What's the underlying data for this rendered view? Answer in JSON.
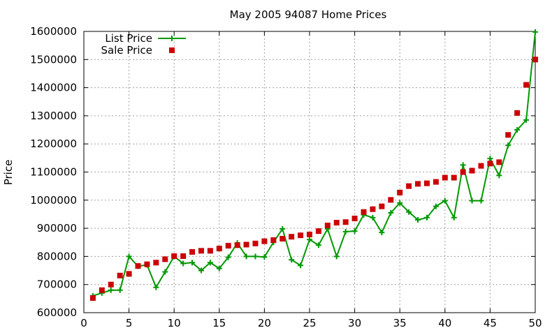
{
  "chart_data": {
    "type": "line",
    "title": "May 2005 94087 Home Prices",
    "xlabel": "",
    "ylabel": "Price",
    "xlim": [
      0,
      50
    ],
    "ylim": [
      600000,
      1600000
    ],
    "xticks": [
      0,
      5,
      10,
      15,
      20,
      25,
      30,
      35,
      40,
      45,
      50
    ],
    "yticks": [
      600000,
      700000,
      800000,
      900000,
      1000000,
      1100000,
      1200000,
      1300000,
      1400000,
      1500000,
      1600000
    ],
    "grid": true,
    "legend_position": "top-left",
    "series": [
      {
        "name": "List Price",
        "style": "line-plus",
        "color": "#009900",
        "x": [
          1,
          2,
          3,
          4,
          5,
          6,
          7,
          8,
          9,
          10,
          11,
          12,
          13,
          14,
          15,
          16,
          17,
          18,
          19,
          20,
          21,
          22,
          23,
          24,
          25,
          26,
          27,
          28,
          29,
          30,
          31,
          32,
          33,
          34,
          35,
          36,
          37,
          38,
          39,
          40,
          41,
          42,
          43,
          44,
          45,
          46,
          47,
          48,
          49,
          50
        ],
        "values": [
          660000,
          670000,
          680000,
          680000,
          800000,
          765000,
          770000,
          690000,
          745000,
          800000,
          775000,
          778000,
          750000,
          778000,
          757000,
          797000,
          848000,
          800000,
          800000,
          798000,
          850000,
          898000,
          788000,
          768000,
          860000,
          840000,
          898000,
          800000,
          888000,
          890000,
          948000,
          938000,
          885000,
          955000,
          990000,
          958000,
          930000,
          938000,
          978000,
          998000,
          938000,
          1125000,
          998000,
          998000,
          1148000,
          1088000,
          1195000,
          1250000,
          1285000,
          1598000
        ]
      },
      {
        "name": "Sale Price",
        "style": "square",
        "color": "#cc0000",
        "x": [
          1,
          2,
          3,
          4,
          5,
          6,
          7,
          8,
          9,
          10,
          11,
          12,
          13,
          14,
          15,
          16,
          17,
          18,
          19,
          20,
          21,
          22,
          23,
          24,
          25,
          26,
          27,
          28,
          29,
          30,
          31,
          32,
          33,
          34,
          35,
          36,
          37,
          38,
          39,
          40,
          41,
          42,
          43,
          44,
          45,
          46,
          47,
          48,
          49,
          50
        ],
        "values": [
          652000,
          680000,
          700000,
          732000,
          738000,
          766000,
          772000,
          778000,
          790000,
          801000,
          801000,
          816000,
          820000,
          820000,
          828000,
          838000,
          840000,
          842000,
          846000,
          854000,
          858000,
          863000,
          870000,
          875000,
          878000,
          890000,
          910000,
          920000,
          922000,
          935000,
          958000,
          968000,
          978000,
          1001000,
          1027000,
          1050000,
          1058000,
          1060000,
          1065000,
          1080000,
          1080000,
          1100000,
          1105000,
          1122000,
          1130000,
          1135000,
          1232000,
          1310000,
          1410000,
          1500000
        ]
      }
    ]
  }
}
